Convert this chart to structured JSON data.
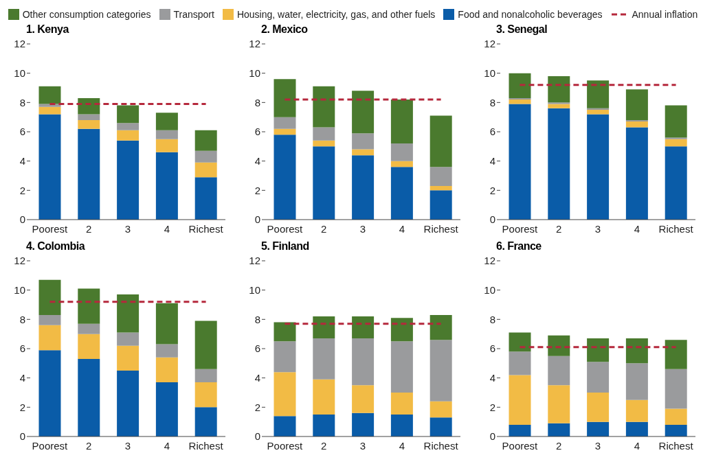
{
  "chart_data": [
    {
      "type": "bar",
      "stacked": true,
      "title": "1. Kenya",
      "categories": [
        "Poorest",
        "2",
        "3",
        "4",
        "Richest"
      ],
      "ylim": [
        0,
        12
      ],
      "yticks": [
        0,
        2,
        4,
        6,
        8,
        10,
        12
      ],
      "legend": "top",
      "series": [
        {
          "name": "Food and nonalcoholic beverages",
          "color": "#0a5ca8",
          "values": [
            7.2,
            6.2,
            5.4,
            4.6,
            2.9
          ]
        },
        {
          "name": "Housing, water, electricity, gas, and other fuels",
          "color": "#f2bb45",
          "values": [
            0.5,
            0.6,
            0.7,
            0.9,
            1.0
          ]
        },
        {
          "name": "Transport",
          "color": "#9a9b9d",
          "values": [
            0.2,
            0.4,
            0.5,
            0.6,
            0.8
          ]
        },
        {
          "name": "Other consumption categories",
          "color": "#4a7a2e",
          "values": [
            1.2,
            1.1,
            1.2,
            1.2,
            1.4
          ]
        },
        {
          "name": "Annual inflation",
          "type": "line",
          "color": "#b5283c",
          "line_style": "dashed",
          "marker": "none",
          "values": [
            7.9,
            7.9,
            7.9,
            7.9,
            7.9
          ]
        }
      ]
    },
    {
      "type": "bar",
      "stacked": true,
      "title": "2. Mexico",
      "categories": [
        "Poorest",
        "2",
        "3",
        "4",
        "Richest"
      ],
      "ylim": [
        0,
        12
      ],
      "yticks": [
        0,
        2,
        4,
        6,
        8,
        10,
        12
      ],
      "series": [
        {
          "color": "#0a5ca8",
          "values": [
            5.8,
            5.0,
            4.4,
            3.6,
            2.0
          ]
        },
        {
          "color": "#f2bb45",
          "values": [
            0.4,
            0.4,
            0.4,
            0.4,
            0.3
          ]
        },
        {
          "color": "#9a9b9d",
          "values": [
            0.8,
            0.9,
            1.1,
            1.2,
            1.3
          ]
        },
        {
          "color": "#4a7a2e",
          "values": [
            2.6,
            2.8,
            2.9,
            3.0,
            3.5
          ]
        },
        {
          "type": "line",
          "color": "#b5283c",
          "line_style": "dashed",
          "marker": "none",
          "values": [
            8.2,
            8.2,
            8.2,
            8.2,
            8.2
          ]
        }
      ]
    },
    {
      "type": "bar",
      "stacked": true,
      "title": "3. Senegal",
      "categories": [
        "Poorest",
        "2",
        "3",
        "4",
        "Richest"
      ],
      "ylim": [
        0,
        12
      ],
      "yticks": [
        0,
        2,
        4,
        6,
        8,
        10,
        12
      ],
      "series": [
        {
          "color": "#0a5ca8",
          "values": [
            7.9,
            7.6,
            7.2,
            6.3,
            5.0
          ]
        },
        {
          "color": "#f2bb45",
          "values": [
            0.3,
            0.3,
            0.3,
            0.4,
            0.5
          ]
        },
        {
          "color": "#9a9b9d",
          "values": [
            0.1,
            0.1,
            0.1,
            0.1,
            0.1
          ]
        },
        {
          "color": "#4a7a2e",
          "values": [
            1.7,
            1.8,
            1.9,
            2.1,
            2.2
          ]
        },
        {
          "type": "line",
          "color": "#b5283c",
          "line_style": "dashed",
          "marker": "none",
          "values": [
            9.2,
            9.2,
            9.2,
            9.2,
            9.2
          ]
        }
      ]
    },
    {
      "type": "bar",
      "stacked": true,
      "title": "4. Colombia",
      "categories": [
        "Poorest",
        "2",
        "3",
        "4",
        "Richest"
      ],
      "ylim": [
        0,
        12
      ],
      "yticks": [
        0,
        2,
        4,
        6,
        8,
        10,
        12
      ],
      "series": [
        {
          "color": "#0a5ca8",
          "values": [
            5.9,
            5.3,
            4.5,
            3.7,
            2.0
          ]
        },
        {
          "color": "#f2bb45",
          "values": [
            1.7,
            1.7,
            1.7,
            1.7,
            1.7
          ]
        },
        {
          "color": "#9a9b9d",
          "values": [
            0.7,
            0.7,
            0.9,
            0.9,
            0.9
          ]
        },
        {
          "color": "#4a7a2e",
          "values": [
            2.4,
            2.4,
            2.6,
            2.8,
            3.3
          ]
        },
        {
          "type": "line",
          "color": "#b5283c",
          "line_style": "dashed",
          "marker": "none",
          "values": [
            9.2,
            9.2,
            9.2,
            9.2,
            9.2
          ]
        }
      ]
    },
    {
      "type": "bar",
      "stacked": true,
      "title": "5. Finland",
      "categories": [
        "Poorest",
        "2",
        "3",
        "4",
        "Richest"
      ],
      "ylim": [
        0,
        12
      ],
      "yticks": [
        0,
        2,
        4,
        6,
        8,
        10,
        12
      ],
      "series": [
        {
          "color": "#0a5ca8",
          "values": [
            1.4,
            1.5,
            1.6,
            1.5,
            1.3
          ]
        },
        {
          "color": "#f2bb45",
          "values": [
            3.0,
            2.4,
            1.9,
            1.5,
            1.1
          ]
        },
        {
          "color": "#9a9b9d",
          "values": [
            2.1,
            2.8,
            3.2,
            3.5,
            4.2
          ]
        },
        {
          "color": "#4a7a2e",
          "values": [
            1.3,
            1.5,
            1.5,
            1.6,
            1.7
          ]
        },
        {
          "type": "line",
          "color": "#b5283c",
          "line_style": "dashed",
          "marker": "none",
          "values": [
            7.7,
            7.7,
            7.7,
            7.7,
            7.7
          ]
        }
      ]
    },
    {
      "type": "bar",
      "stacked": true,
      "title": "6. France",
      "categories": [
        "Poorest",
        "2",
        "3",
        "4",
        "Richest"
      ],
      "ylim": [
        0,
        12
      ],
      "yticks": [
        0,
        2,
        4,
        6,
        8,
        10,
        12
      ],
      "series": [
        {
          "color": "#0a5ca8",
          "values": [
            0.8,
            0.9,
            1.0,
            1.0,
            0.8
          ]
        },
        {
          "color": "#f2bb45",
          "values": [
            3.4,
            2.6,
            2.0,
            1.5,
            1.1
          ]
        },
        {
          "color": "#9a9b9d",
          "values": [
            1.6,
            2.0,
            2.1,
            2.5,
            2.7
          ]
        },
        {
          "color": "#4a7a2e",
          "values": [
            1.3,
            1.4,
            1.6,
            1.7,
            2.0
          ]
        },
        {
          "type": "line",
          "color": "#b5283c",
          "line_style": "dashed",
          "marker": "none",
          "values": [
            6.1,
            6.1,
            6.1,
            6.1,
            6.1
          ]
        }
      ]
    }
  ]
}
